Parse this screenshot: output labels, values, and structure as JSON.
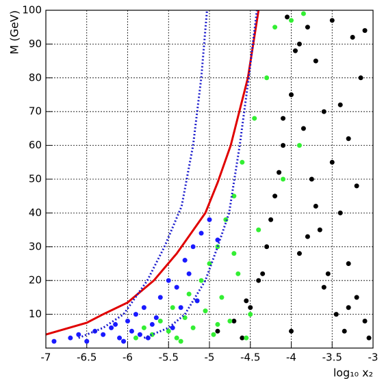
{
  "chart_data": {
    "type": "scatter",
    "xlabel": "log₁₀ x₂",
    "ylabel": "M (GeV)",
    "xlim": [
      -7,
      -3
    ],
    "ylim": [
      0,
      100
    ],
    "xticks": [
      -7,
      -6.5,
      -6,
      -5.5,
      -5,
      -4.5,
      -4,
      -3.5,
      -3
    ],
    "yticks": [
      10,
      20,
      30,
      40,
      50,
      60,
      70,
      80,
      90,
      100
    ],
    "grid": true,
    "series": [
      {
        "mode": "markers",
        "color": "#000000",
        "x": [
          -4.9,
          -4.7,
          -4.6,
          -4.5,
          -4.4,
          -4.3,
          -4.2,
          -4.1,
          -4.0,
          -3.9,
          -3.8,
          -3.7,
          -3.6,
          -3.5,
          -3.4,
          -3.3,
          -3.2,
          -3.1,
          -3.05,
          -4.05,
          -3.95,
          -3.85,
          -3.75,
          -3.65,
          -3.55,
          -3.45,
          -3.35,
          -3.25,
          -3.15,
          -4.25,
          -4.15,
          -3.9,
          -3.6,
          -3.3,
          -4.0,
          -3.7,
          -3.4,
          -3.2,
          -4.35,
          -4.55,
          -3.1,
          -3.5,
          -3.8,
          -4.1,
          -3.3
        ],
        "values": [
          5,
          8,
          3,
          12,
          20,
          30,
          45,
          60,
          75,
          90,
          95,
          85,
          70,
          55,
          40,
          25,
          15,
          8,
          3,
          98,
          88,
          65,
          50,
          35,
          22,
          10,
          5,
          92,
          80,
          38,
          52,
          28,
          18,
          62,
          5,
          42,
          72,
          48,
          22,
          14,
          94,
          97,
          33,
          68,
          12
        ]
      },
      {
        "mode": "markers",
        "color": "#33ee33",
        "x": [
          -5.9,
          -5.8,
          -5.7,
          -5.6,
          -5.5,
          -5.45,
          -5.4,
          -5.3,
          -5.25,
          -5.2,
          -5.1,
          -5.05,
          -5.0,
          -4.95,
          -4.9,
          -4.85,
          -4.8,
          -4.75,
          -4.7,
          -4.65,
          -4.6,
          -4.5,
          -4.45,
          -4.4,
          -4.3,
          -4.2,
          -4.1,
          -4.0,
          -3.9,
          -3.85,
          -5.35,
          -5.15,
          -4.9,
          -4.7,
          -4.55
        ],
        "values": [
          3,
          6,
          4,
          8,
          5,
          12,
          3,
          9,
          16,
          6,
          20,
          11,
          25,
          4,
          30,
          15,
          38,
          8,
          45,
          22,
          55,
          10,
          68,
          35,
          80,
          95,
          50,
          97,
          60,
          99,
          2,
          14,
          7,
          28,
          3
        ]
      },
      {
        "mode": "markers",
        "color": "#1a1aff",
        "x": [
          -6.9,
          -6.7,
          -6.6,
          -6.5,
          -6.4,
          -6.3,
          -6.2,
          -6.1,
          -6.0,
          -5.95,
          -5.9,
          -5.85,
          -5.8,
          -5.7,
          -5.6,
          -5.5,
          -5.4,
          -5.3,
          -5.2,
          -5.1,
          -5.0,
          -4.9,
          -6.05,
          -6.15,
          -5.75,
          -5.65,
          -5.45,
          -5.35,
          -5.25,
          -5.15
        ],
        "values": [
          2,
          3,
          4,
          2,
          5,
          4,
          6,
          3,
          8,
          5,
          10,
          4,
          12,
          7,
          15,
          20,
          18,
          26,
          30,
          34,
          38,
          32,
          2,
          7,
          3,
          9,
          6,
          12,
          22,
          14
        ]
      },
      {
        "mode": "line",
        "color": "#e00000",
        "x": [
          -7,
          -6.5,
          -6.3,
          -6,
          -5.68,
          -5.4,
          -5.05,
          -4.9,
          -4.74,
          -4.53,
          -4.4
        ],
        "values": [
          4,
          7.5,
          10,
          13.5,
          20,
          28,
          40,
          49,
          60,
          80,
          100
        ]
      },
      {
        "mode": "dotted",
        "color": "#1a1acc",
        "x": [
          -6.6,
          -6.3,
          -6.05,
          -5.76,
          -5.55,
          -5.34,
          -5.2,
          -5.1,
          -5.03
        ],
        "values": [
          3,
          6,
          10,
          20,
          30,
          42,
          60,
          80,
          100
        ]
      },
      {
        "mode": "dotted",
        "color": "#1a1acc",
        "x": [
          -5.8,
          -5.5,
          -5.3,
          -5.05,
          -4.9,
          -4.76,
          -4.63,
          -4.52,
          -4.42
        ],
        "values": [
          3,
          6,
          10,
          20,
          30,
          40,
          60,
          80,
          100
        ]
      }
    ]
  }
}
